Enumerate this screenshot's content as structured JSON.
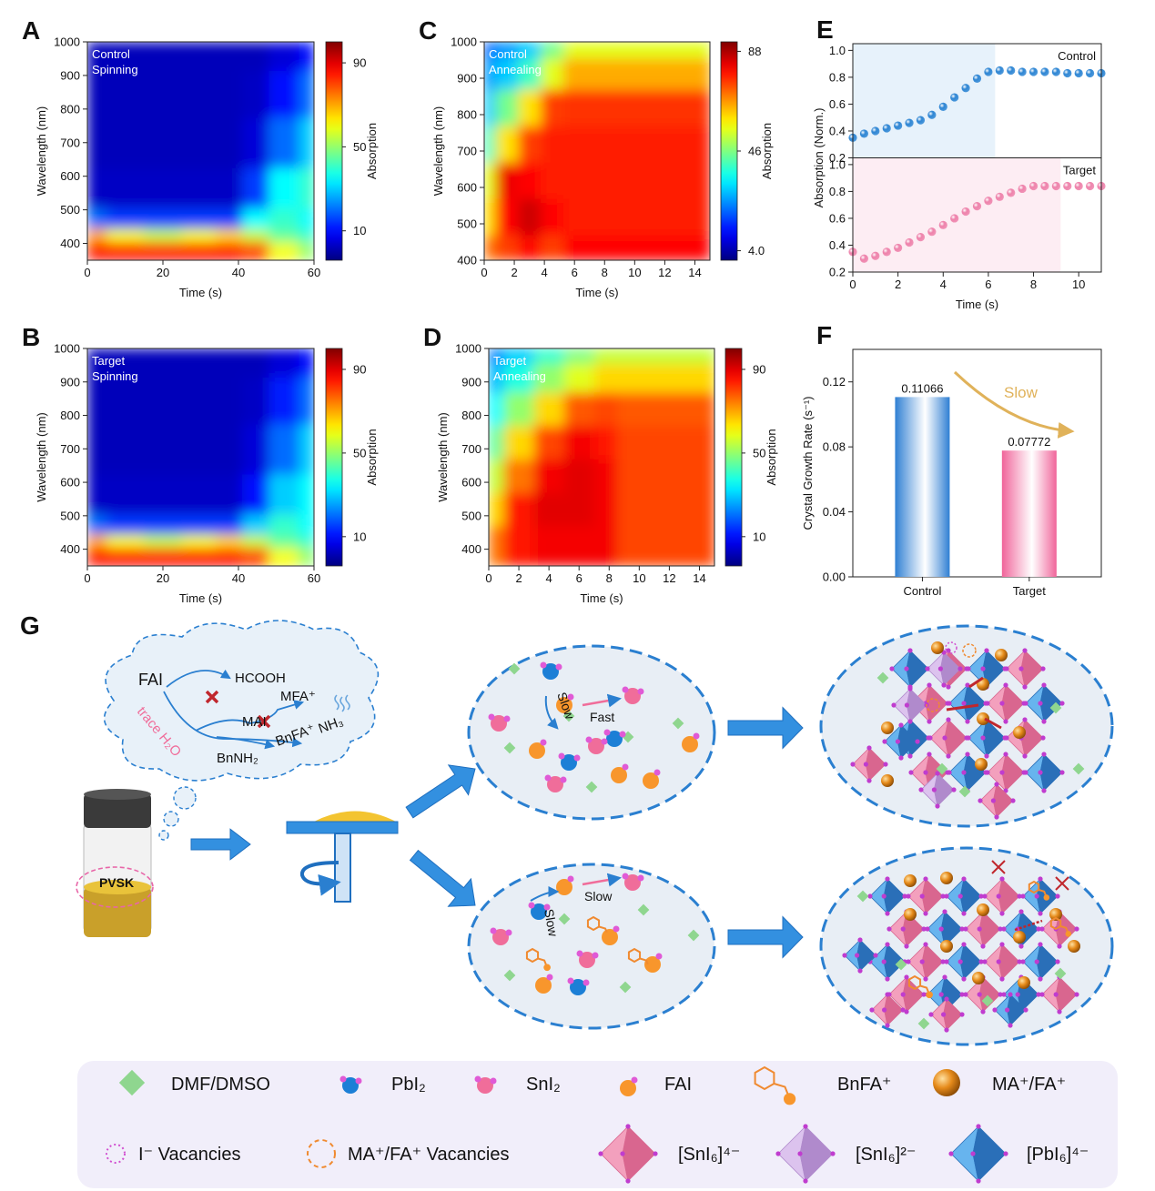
{
  "chart_data": [
    {
      "label": "A",
      "type": "heatmap",
      "annotation": [
        "Control",
        "Spinning"
      ],
      "xlabel": "Time (s)",
      "ylabel": "Wavelength (nm)",
      "xlim": [
        0,
        60
      ],
      "xticks": [
        0,
        20,
        40,
        60
      ],
      "ylim": [
        350,
        1000
      ],
      "yticks": [
        400,
        500,
        600,
        700,
        800,
        900,
        1000
      ],
      "x": [
        0,
        10,
        20,
        30,
        38,
        44,
        52,
        60
      ],
      "y": [
        380,
        430,
        460,
        550,
        700,
        850,
        980
      ],
      "z": [
        [
          85,
          85,
          85,
          85,
          85,
          80,
          60,
          50
        ],
        [
          70,
          60,
          55,
          60,
          65,
          55,
          45,
          40
        ],
        [
          20,
          15,
          15,
          15,
          15,
          35,
          40,
          35
        ],
        [
          3,
          3,
          3,
          3,
          3,
          15,
          35,
          40
        ],
        [
          2,
          2,
          2,
          2,
          2,
          5,
          20,
          30
        ],
        [
          2,
          2,
          2,
          2,
          2,
          3,
          10,
          20
        ],
        [
          2,
          2,
          2,
          2,
          2,
          2,
          5,
          10
        ]
      ],
      "colorbar": {
        "label": "Absorption",
        "clim": [
          -4,
          100
        ],
        "ticks": [
          10,
          50,
          90
        ]
      }
    },
    {
      "label": "B",
      "type": "heatmap",
      "annotation": [
        "Target",
        "Spinning"
      ],
      "xlabel": "Time (s)",
      "ylabel": "Wavelength (nm)",
      "xlim": [
        0,
        60
      ],
      "xticks": [
        0,
        20,
        40,
        60
      ],
      "ylim": [
        350,
        1000
      ],
      "yticks": [
        400,
        500,
        600,
        700,
        800,
        900,
        1000
      ],
      "x": [
        0,
        10,
        20,
        30,
        38,
        44,
        52,
        60
      ],
      "y": [
        380,
        430,
        460,
        550,
        700,
        850,
        980
      ],
      "z": [
        [
          85,
          85,
          85,
          85,
          85,
          80,
          60,
          50
        ],
        [
          70,
          60,
          55,
          60,
          65,
          55,
          45,
          40
        ],
        [
          20,
          15,
          15,
          15,
          15,
          30,
          40,
          35
        ],
        [
          3,
          3,
          3,
          3,
          3,
          10,
          30,
          35
        ],
        [
          2,
          2,
          2,
          2,
          2,
          5,
          20,
          30
        ],
        [
          2,
          2,
          2,
          2,
          2,
          3,
          12,
          20
        ],
        [
          2,
          2,
          2,
          2,
          2,
          2,
          5,
          10
        ]
      ],
      "colorbar": {
        "label": "Absorption",
        "clim": [
          -4,
          100
        ],
        "ticks": [
          10,
          50,
          90
        ]
      }
    },
    {
      "label": "C",
      "type": "heatmap",
      "annotation": [
        "Control",
        "Annealing"
      ],
      "xlabel": "Time (s)",
      "ylabel": "Wavelength (nm)",
      "xlim": [
        0,
        15
      ],
      "xticks": [
        0,
        2,
        4,
        6,
        8,
        10,
        12,
        14
      ],
      "ylim": [
        400,
        1000
      ],
      "yticks": [
        400,
        500,
        600,
        700,
        800,
        900,
        1000
      ],
      "x": [
        0,
        1.5,
        3,
        4.5,
        6,
        9,
        12,
        15
      ],
      "y": [
        420,
        520,
        620,
        720,
        820,
        920,
        990
      ],
      "z": [
        [
          70,
          75,
          80,
          75,
          80,
          80,
          80,
          80
        ],
        [
          60,
          80,
          85,
          80,
          78,
          78,
          78,
          78
        ],
        [
          55,
          82,
          80,
          78,
          78,
          78,
          78,
          78
        ],
        [
          40,
          60,
          75,
          78,
          78,
          78,
          78,
          78
        ],
        [
          30,
          45,
          60,
          75,
          76,
          76,
          76,
          76
        ],
        [
          25,
          30,
          40,
          55,
          65,
          65,
          65,
          65
        ],
        [
          20,
          25,
          30,
          45,
          55,
          55,
          55,
          55
        ]
      ],
      "colorbar": {
        "label": "Absorption",
        "clim": [
          0,
          92
        ],
        "ticks": [
          {
            "value": 4,
            "label": "4.0"
          },
          46,
          88
        ]
      }
    },
    {
      "label": "D",
      "type": "heatmap",
      "annotation": [
        "Target",
        "Annealing"
      ],
      "xlabel": "Time (s)",
      "ylabel": "Wavelength (nm)",
      "xlim": [
        0,
        15
      ],
      "xticks": [
        0,
        2,
        4,
        6,
        8,
        10,
        12,
        14
      ],
      "ylim": [
        350,
        1000
      ],
      "yticks": [
        400,
        500,
        600,
        700,
        800,
        900,
        1000
      ],
      "x": [
        0,
        2,
        4,
        6,
        8,
        9,
        12,
        15
      ],
      "y": [
        420,
        520,
        620,
        720,
        820,
        920,
        990
      ],
      "z": [
        [
          75,
          85,
          88,
          88,
          88,
          80,
          80,
          80
        ],
        [
          65,
          85,
          90,
          90,
          88,
          80,
          80,
          80
        ],
        [
          55,
          75,
          88,
          90,
          88,
          80,
          80,
          80
        ],
        [
          45,
          65,
          80,
          88,
          85,
          80,
          80,
          80
        ],
        [
          35,
          50,
          65,
          78,
          80,
          78,
          78,
          78
        ],
        [
          28,
          38,
          50,
          58,
          65,
          65,
          65,
          65
        ],
        [
          22,
          30,
          40,
          48,
          55,
          55,
          55,
          55
        ]
      ],
      "colorbar": {
        "label": "Absorption",
        "clim": [
          -4,
          100
        ],
        "ticks": [
          10,
          50,
          90
        ]
      }
    },
    {
      "label": "E",
      "type": "scatter",
      "xlabel": "Time (s)",
      "ylabel": "Absorption (Norm.)",
      "xlim": [
        0,
        11
      ],
      "xticks": [
        0,
        2,
        4,
        6,
        8,
        10
      ],
      "ylim": [
        0.2,
        1.05
      ],
      "yticks": [
        0.2,
        0.4,
        0.6,
        0.8,
        {
          "value": 1,
          "label": "1.0"
        }
      ],
      "x": [
        0,
        0.5,
        1,
        1.5,
        2,
        2.5,
        3,
        3.5,
        4,
        4.5,
        5,
        5.5,
        6,
        6.5,
        7,
        7.5,
        8,
        8.5,
        9,
        9.5,
        10,
        10.5,
        11
      ],
      "series": [
        {
          "name": "Control",
          "color": "#2e86d4",
          "shade_color": "#e7f2fb",
          "shade": [
            0,
            6.3
          ],
          "values": [
            0.35,
            0.38,
            0.4,
            0.42,
            0.44,
            0.46,
            0.48,
            0.52,
            0.58,
            0.65,
            0.72,
            0.79,
            0.84,
            0.85,
            0.85,
            0.84,
            0.84,
            0.84,
            0.84,
            0.83,
            0.83,
            0.83,
            0.83
          ]
        },
        {
          "name": "Target",
          "color": "#ee82ab",
          "shade_color": "#fdedf3",
          "shade": [
            0,
            9.2
          ],
          "values": [
            0.35,
            0.3,
            0.32,
            0.35,
            0.38,
            0.42,
            0.46,
            0.5,
            0.55,
            0.6,
            0.65,
            0.69,
            0.73,
            0.76,
            0.79,
            0.82,
            0.84,
            0.84,
            0.84,
            0.84,
            0.84,
            0.84,
            0.84
          ]
        }
      ]
    },
    {
      "label": "F",
      "type": "bar",
      "ylabel": "Crystal Growth Rate (s⁻¹)",
      "annotation": "Slow",
      "categories": [
        "Control",
        "Target"
      ],
      "values": [
        0.11066,
        0.07772
      ],
      "colors": [
        "#2f7fd3",
        "#f0649a"
      ],
      "ylim": [
        0,
        0.14
      ],
      "yticks": [
        {
          "value": 0,
          "label": "0.00"
        },
        0.04,
        0.08,
        0.12
      ]
    }
  ],
  "diagram": {
    "label": "G",
    "cloud": {
      "fai": "FAI",
      "hcooh": "HCOOH",
      "mai": "MAI",
      "mfa": "MFA⁺",
      "bnfa": "BnFA⁺",
      "nh3": "NH₃",
      "bnnh2": "BnNH₂",
      "water": "trace H₂O"
    },
    "vial": "PVSK",
    "top_solution": {
      "fast": "Fast",
      "slow": "Slow"
    },
    "bottom_solution": {
      "slow_left": "Slow",
      "slow_top": "Slow"
    },
    "legend": [
      "DMF/DMSO",
      "PbI₂",
      "SnI₂",
      "FAI",
      "BnFA⁺",
      "MA⁺/FA⁺",
      "I⁻ Vacancies",
      "MA⁺/FA⁺ Vacancies",
      "[SnI₆]⁴⁻",
      "[SnI₆]²⁻",
      "[PbI₆]⁴⁻"
    ]
  }
}
